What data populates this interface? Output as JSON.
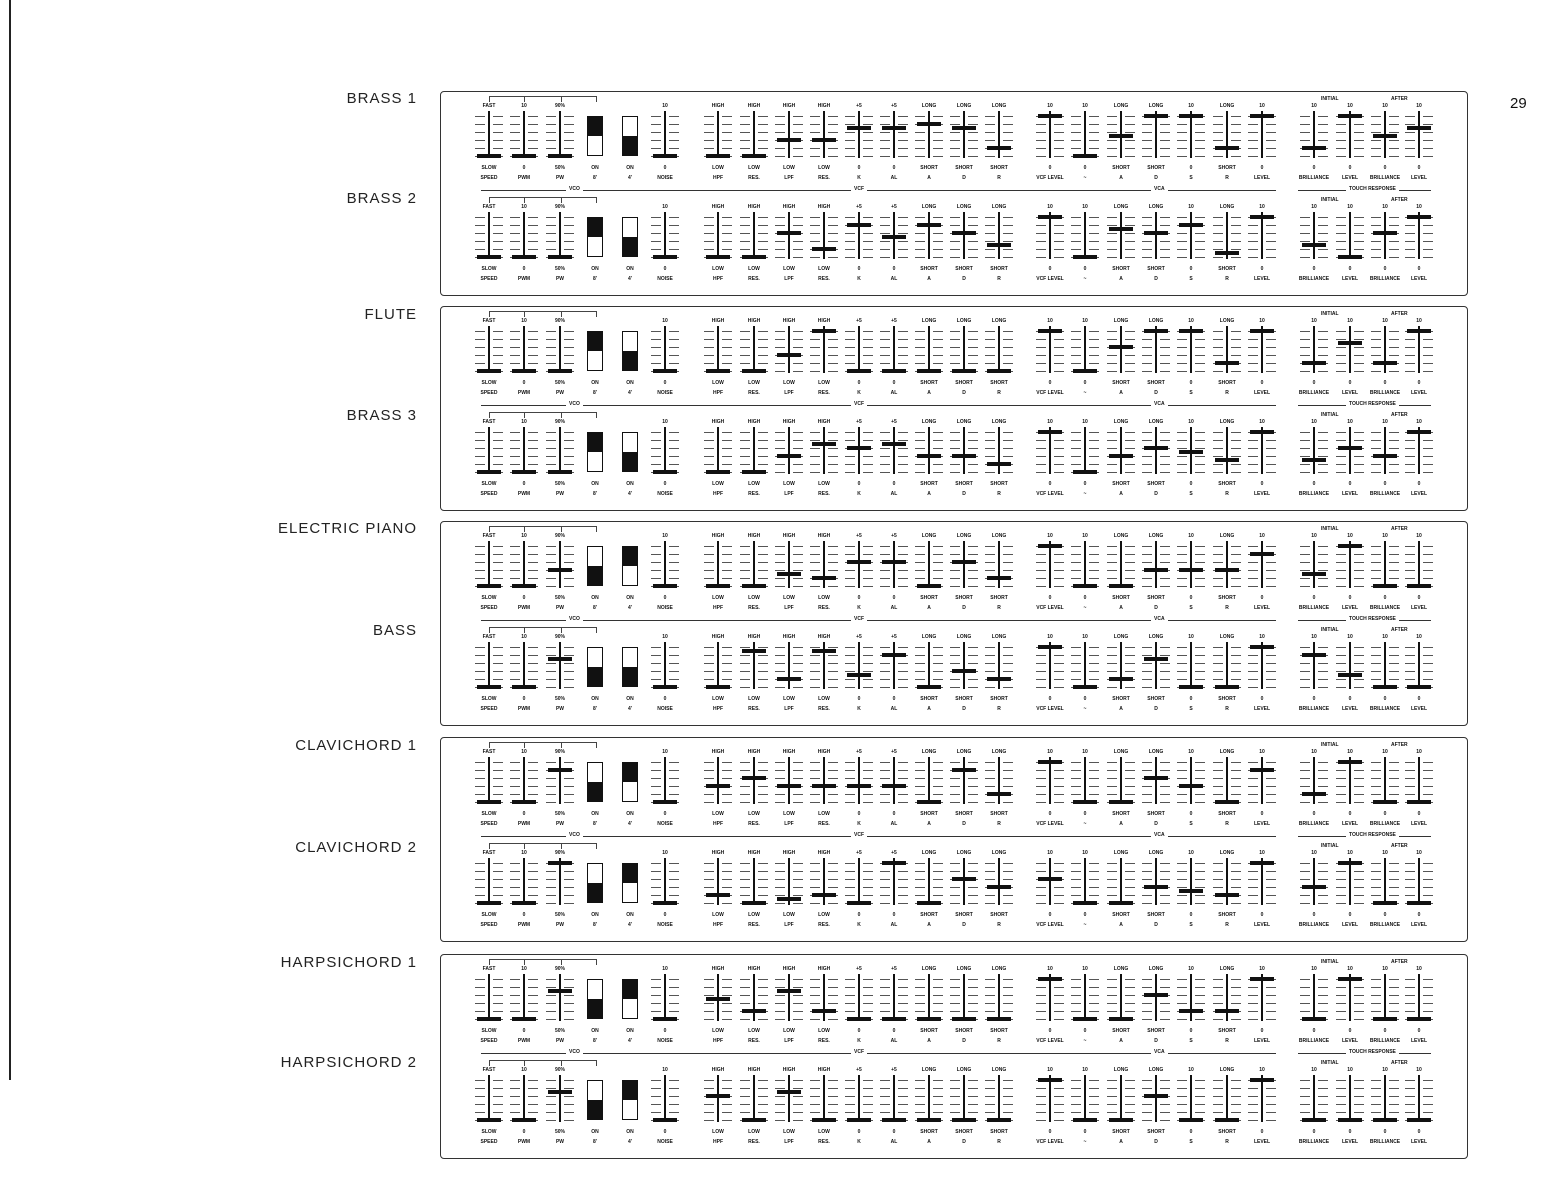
{
  "page_number": "29",
  "sections": {
    "vco": "VCO",
    "vcf": "VCF",
    "vca": "VCA",
    "touch": "TOUCH RESPONSE",
    "initial": "INITIAL",
    "after": "AFTER"
  },
  "columns": [
    {
      "name": "SPEED",
      "top": "FAST",
      "bottom": "SLOW",
      "type": "slider"
    },
    {
      "name": "PWM",
      "top": "10",
      "bottom": "0",
      "type": "slider"
    },
    {
      "name": "PW",
      "top": "90%",
      "bottom": "50%",
      "type": "slider"
    },
    {
      "name": "8'",
      "top": "",
      "bottom": "ON",
      "type": "switch"
    },
    {
      "name": "4'",
      "top": "",
      "bottom": "ON",
      "type": "switch"
    },
    {
      "name": "NOISE",
      "top": "10",
      "bottom": "0",
      "type": "slider"
    },
    {
      "name": "HPF",
      "top": "HIGH",
      "bottom": "LOW",
      "type": "slider"
    },
    {
      "name": "RES.",
      "top": "HIGH",
      "bottom": "LOW",
      "type": "slider"
    },
    {
      "name": "LPF",
      "top": "HIGH",
      "bottom": "LOW",
      "type": "slider"
    },
    {
      "name": "RES.",
      "top": "HIGH",
      "bottom": "LOW",
      "type": "slider"
    },
    {
      "name": "K",
      "top": "+5",
      "bottom": "0",
      "type": "slider"
    },
    {
      "name": "AL",
      "top": "+5",
      "bottom": "0",
      "type": "slider"
    },
    {
      "name": "A",
      "top": "LONG",
      "bottom": "SHORT",
      "type": "slider"
    },
    {
      "name": "D",
      "top": "LONG",
      "bottom": "SHORT",
      "type": "slider"
    },
    {
      "name": "R",
      "top": "LONG",
      "bottom": "SHORT",
      "type": "slider"
    },
    {
      "name": "VCF LEVEL",
      "top": "10",
      "bottom": "0",
      "type": "slider"
    },
    {
      "name": "~",
      "top": "10",
      "bottom": "0",
      "type": "slider"
    },
    {
      "name": "A",
      "top": "LONG",
      "bottom": "SHORT",
      "type": "slider"
    },
    {
      "name": "D",
      "top": "LONG",
      "bottom": "SHORT",
      "type": "slider"
    },
    {
      "name": "S",
      "top": "10",
      "bottom": "0",
      "type": "slider"
    },
    {
      "name": "R",
      "top": "LONG",
      "bottom": "SHORT",
      "type": "slider"
    },
    {
      "name": "LEVEL",
      "top": "10",
      "bottom": "0",
      "type": "slider"
    },
    {
      "name": "BRILLIANCE",
      "top": "10",
      "bottom": "0",
      "type": "slider"
    },
    {
      "name": "LEVEL",
      "top": "10",
      "bottom": "0",
      "type": "slider"
    },
    {
      "name": "BRILLIANCE",
      "top": "10",
      "bottom": "0",
      "type": "slider"
    },
    {
      "name": "LEVEL",
      "top": "10",
      "bottom": "0",
      "type": "slider"
    }
  ],
  "presets": [
    {
      "name": "BRASS 1",
      "values": [
        0,
        0,
        0,
        "top",
        "bottom",
        0,
        0,
        0,
        4,
        4,
        7,
        7,
        8,
        7,
        2,
        10,
        0,
        5,
        10,
        10,
        2,
        10,
        2,
        10,
        5,
        7
      ]
    },
    {
      "name": "BRASS 2",
      "values": [
        0,
        0,
        0,
        "top",
        "bottom",
        0,
        0,
        0,
        6,
        2,
        8,
        5,
        8,
        6,
        3,
        10,
        0,
        7,
        6,
        8,
        1,
        10,
        3,
        0,
        6,
        10
      ]
    },
    {
      "name": "FLUTE",
      "values": [
        0,
        0,
        0,
        "top",
        "bottom",
        0,
        0,
        0,
        4,
        10,
        0,
        0,
        0,
        0,
        0,
        10,
        0,
        6,
        10,
        10,
        2,
        10,
        2,
        7,
        2,
        10
      ]
    },
    {
      "name": "BRASS 3",
      "values": [
        0,
        0,
        0,
        "top",
        "bottom",
        0,
        0,
        0,
        4,
        7,
        6,
        7,
        4,
        4,
        2,
        10,
        0,
        4,
        6,
        5,
        3,
        10,
        3,
        6,
        4,
        10
      ]
    },
    {
      "name": "ELECTRIC PIANO",
      "values": [
        0,
        0,
        4,
        "bottom",
        "top",
        0,
        0,
        0,
        3,
        2,
        6,
        6,
        0,
        6,
        2,
        10,
        0,
        0,
        4,
        4,
        4,
        8,
        3,
        10,
        0,
        0
      ]
    },
    {
      "name": "BASS",
      "values": [
        0,
        0,
        7,
        "bottom",
        "bottom",
        0,
        0,
        9,
        2,
        9,
        3,
        8,
        0,
        4,
        2,
        10,
        0,
        2,
        7,
        0,
        0,
        10,
        8,
        3,
        0,
        0
      ]
    },
    {
      "name": "CLAVICHORD 1",
      "values": [
        0,
        0,
        8,
        "bottom",
        "top",
        0,
        4,
        6,
        4,
        4,
        4,
        4,
        0,
        8,
        2,
        10,
        0,
        0,
        6,
        4,
        0,
        8,
        2,
        10,
        0,
        0
      ]
    },
    {
      "name": "CLAVICHORD 2",
      "values": [
        0,
        0,
        10,
        "bottom",
        "top",
        0,
        2,
        0,
        1,
        2,
        0,
        10,
        0,
        6,
        4,
        6,
        0,
        0,
        4,
        3,
        2,
        10,
        4,
        10,
        0,
        0
      ]
    },
    {
      "name": "HARPSICHORD 1",
      "values": [
        0,
        0,
        7,
        "bottom",
        "top",
        0,
        5,
        2,
        7,
        2,
        0,
        0,
        0,
        0,
        0,
        10,
        0,
        0,
        6,
        2,
        2,
        10,
        0,
        10,
        0,
        0
      ]
    },
    {
      "name": "HARPSICHORD 2",
      "values": [
        0,
        0,
        7,
        "bottom",
        "top",
        0,
        6,
        0,
        7,
        0,
        0,
        0,
        0,
        0,
        0,
        10,
        0,
        0,
        6,
        0,
        0,
        10,
        0,
        0,
        0,
        0
      ]
    }
  ]
}
